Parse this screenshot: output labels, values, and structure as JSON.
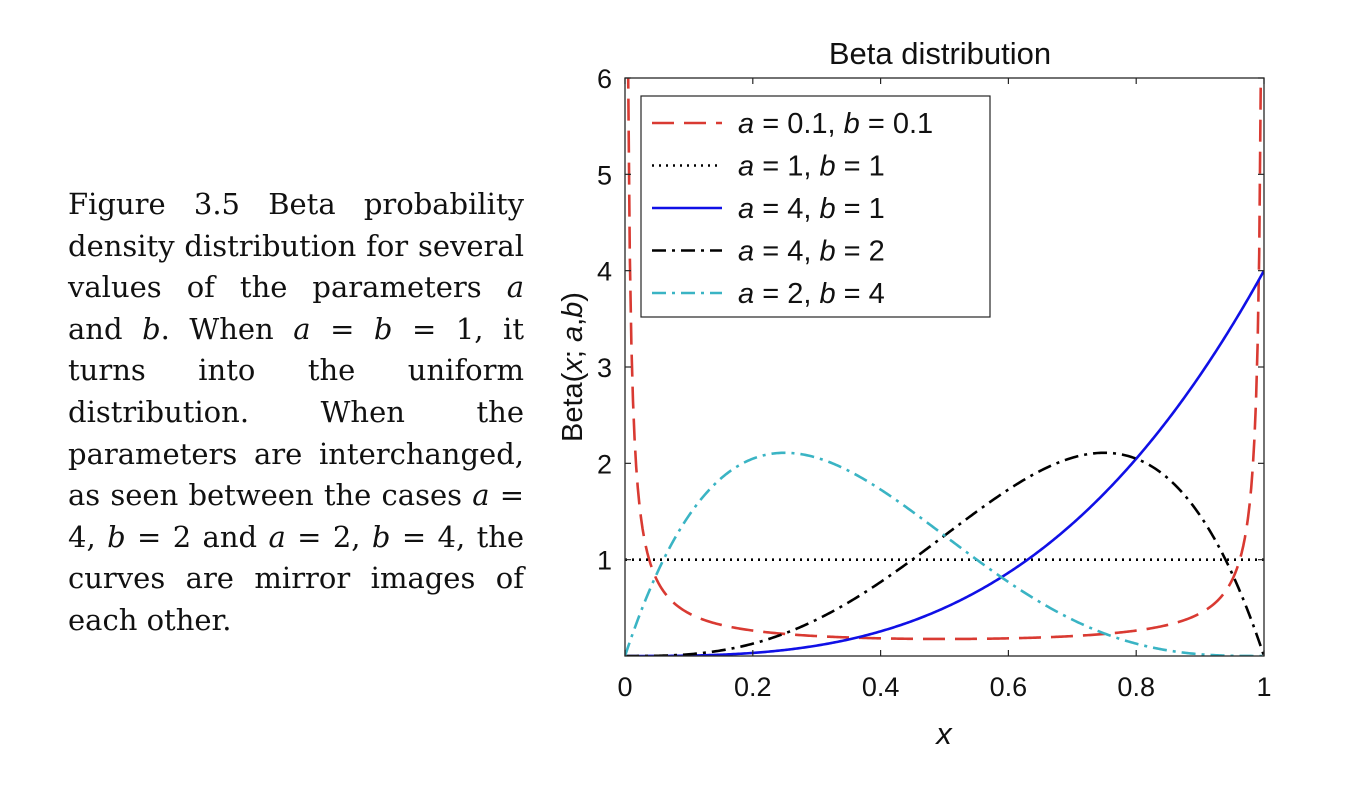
{
  "caption": {
    "figure_label": "Figure 3.5",
    "text_1": "Beta probability density distribution for several values of the parameters",
    "var_a": "a",
    "and_word": "and",
    "var_b": "b",
    "text_2": ". When",
    "eq_1": "= 1, it turns into the uniform distribution. When the parameters are interchanged, as seen between the cases",
    "case_1": "= 4,",
    "case_1b": "= 2 and",
    "case_2": "= 2,",
    "case_2b": "= 4, the curves are mirror images of each other."
  },
  "chart_data": {
    "type": "line",
    "title": "Beta distribution",
    "xlabel": "x",
    "ylabel": "Beta(x; a,b)",
    "xlim": [
      0,
      1
    ],
    "ylim": [
      0,
      6
    ],
    "xticks": [
      0,
      0.2,
      0.4,
      0.6,
      0.8,
      1
    ],
    "xtick_labels": [
      "0",
      "0.2",
      "0.4",
      "0.6",
      "0.8",
      "1"
    ],
    "yticks": [
      1,
      2,
      3,
      4,
      5,
      6
    ],
    "ytick_labels": [
      "1",
      "2",
      "3",
      "4",
      "5",
      "6"
    ],
    "grid": false,
    "legend_position": "top-left",
    "series": [
      {
        "name": "a = 0.1,  b = 0.1",
        "a_label": "a",
        "a_val": "= 0.1,",
        "b_label": "b",
        "b_val": "= 0.1",
        "a": 0.1,
        "b": 0.1,
        "color": "#d93a32",
        "dash": "22,10",
        "x": [
          0.006,
          0.01,
          0.015,
          0.02,
          0.03,
          0.04,
          0.05,
          0.06,
          0.08,
          0.1,
          0.15,
          0.2,
          0.25,
          0.3,
          0.35,
          0.4,
          0.45,
          0.5,
          0.55,
          0.6,
          0.65,
          0.7,
          0.75,
          0.8,
          0.85,
          0.9,
          0.92,
          0.94,
          0.95,
          0.96,
          0.97,
          0.98,
          0.985,
          0.99,
          0.994
        ],
        "y": [
          6.0,
          3.87,
          2.67,
          2.04,
          1.38,
          1.05,
          0.85,
          0.71,
          0.55,
          0.45,
          0.31,
          0.25,
          0.21,
          0.19,
          0.18,
          0.17,
          0.17,
          0.17,
          0.17,
          0.17,
          0.18,
          0.19,
          0.21,
          0.25,
          0.31,
          0.45,
          0.55,
          0.71,
          0.85,
          1.05,
          1.38,
          2.04,
          2.67,
          3.87,
          6.0
        ]
      },
      {
        "name": "a = 1,  b = 1",
        "a_label": "a",
        "a_val": "= 1,",
        "b_label": "b",
        "b_val": "= 1",
        "a": 1,
        "b": 1,
        "color": "#000000",
        "dash": "2,5",
        "x": [
          0,
          1
        ],
        "y": [
          1,
          1
        ]
      },
      {
        "name": "a = 4,  b = 1",
        "a_label": "a",
        "a_val": "= 4,",
        "b_label": "b",
        "b_val": "= 1",
        "a": 4,
        "b": 1,
        "color": "#1010e6",
        "dash": "",
        "x": [
          0,
          0.1,
          0.2,
          0.3,
          0.4,
          0.5,
          0.6,
          0.65,
          0.7,
          0.75,
          0.8,
          0.85,
          0.9,
          0.95,
          1.0
        ],
        "y": [
          0,
          0.004,
          0.032,
          0.108,
          0.256,
          0.5,
          0.864,
          1.099,
          1.372,
          1.688,
          2.048,
          2.456,
          2.916,
          3.43,
          4.0
        ]
      },
      {
        "name": "a = 4,  b = 2",
        "a_label": "a",
        "a_val": "= 4,",
        "b_label": "b",
        "b_val": "= 2",
        "a": 4,
        "b": 2,
        "color": "#000000",
        "dash": "14,6,3,6",
        "x": [
          0,
          0.1,
          0.2,
          0.3,
          0.4,
          0.5,
          0.6,
          0.65,
          0.7,
          0.75,
          0.8,
          0.85,
          0.9,
          0.95,
          1.0
        ],
        "y": [
          0,
          0.018,
          0.128,
          0.378,
          0.768,
          1.25,
          1.728,
          1.923,
          2.058,
          2.109,
          2.048,
          1.842,
          1.458,
          0.857,
          0
        ]
      },
      {
        "name": "a = 2,  b = 4",
        "a_label": "a",
        "a_val": "= 2,",
        "b_label": "b",
        "b_val": "= 4",
        "a": 2,
        "b": 4,
        "color": "#3ab4c4",
        "dash": "14,6,3,6",
        "x": [
          0,
          0.05,
          0.1,
          0.15,
          0.2,
          0.25,
          0.3,
          0.35,
          0.4,
          0.5,
          0.6,
          0.7,
          0.8,
          0.9,
          1.0
        ],
        "y": [
          0,
          0.857,
          1.458,
          1.842,
          2.048,
          2.109,
          2.058,
          1.923,
          1.728,
          1.25,
          0.768,
          0.378,
          0.128,
          0.018,
          0
        ]
      }
    ]
  }
}
